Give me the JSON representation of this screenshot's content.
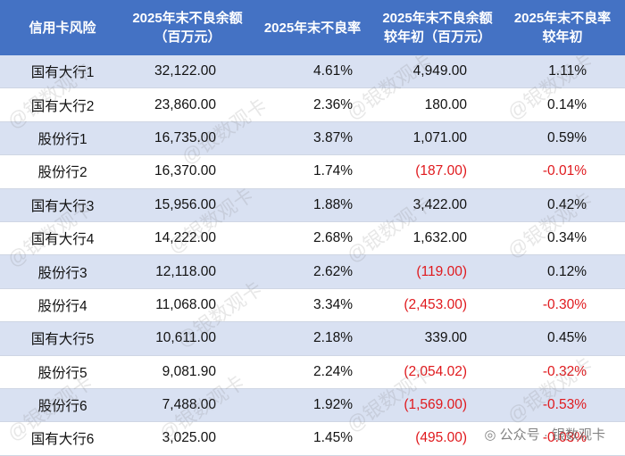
{
  "table": {
    "header": [
      [
        "信用卡风险"
      ],
      [
        "2025年末不良余额",
        "（百万元）"
      ],
      [
        "2025年末不良率"
      ],
      [
        "2025年末不良余额",
        "较年初（百万元）"
      ],
      [
        "2025年末不良率",
        "较年初"
      ]
    ],
    "rows": [
      [
        "国有大行1",
        "32,122.00",
        "4.61%",
        "4,949.00",
        "1.11%"
      ],
      [
        "国有大行2",
        "23,860.00",
        "2.36%",
        "180.00",
        "0.14%"
      ],
      [
        "股份行1",
        "16,735.00",
        "3.87%",
        "1,071.00",
        "0.59%"
      ],
      [
        "股份行2",
        "16,370.00",
        "1.74%",
        "(187.00)",
        "-0.01%"
      ],
      [
        "国有大行3",
        "15,956.00",
        "1.88%",
        "3,422.00",
        "0.42%"
      ],
      [
        "国有大行4",
        "14,222.00",
        "2.68%",
        "1,632.00",
        "0.34%"
      ],
      [
        "股份行3",
        "12,118.00",
        "2.62%",
        "(119.00)",
        "0.12%"
      ],
      [
        "股份行4",
        "11,068.00",
        "3.34%",
        "(2,453.00)",
        "-0.30%"
      ],
      [
        "国有大行5",
        "10,611.00",
        "2.18%",
        "339.00",
        "0.45%"
      ],
      [
        "股份行5",
        "9,081.90",
        "2.24%",
        "(2,054.02)",
        "-0.32%"
      ],
      [
        "股份行6",
        "7,488.00",
        "1.92%",
        "(1,569.00)",
        "-0.53%"
      ],
      [
        "国有大行6",
        "3,025.00",
        "1.45%",
        "(495.00)",
        "-0.03%"
      ]
    ]
  },
  "watermark": "@银数观卡",
  "footer": "公众号 · 银数观卡"
}
